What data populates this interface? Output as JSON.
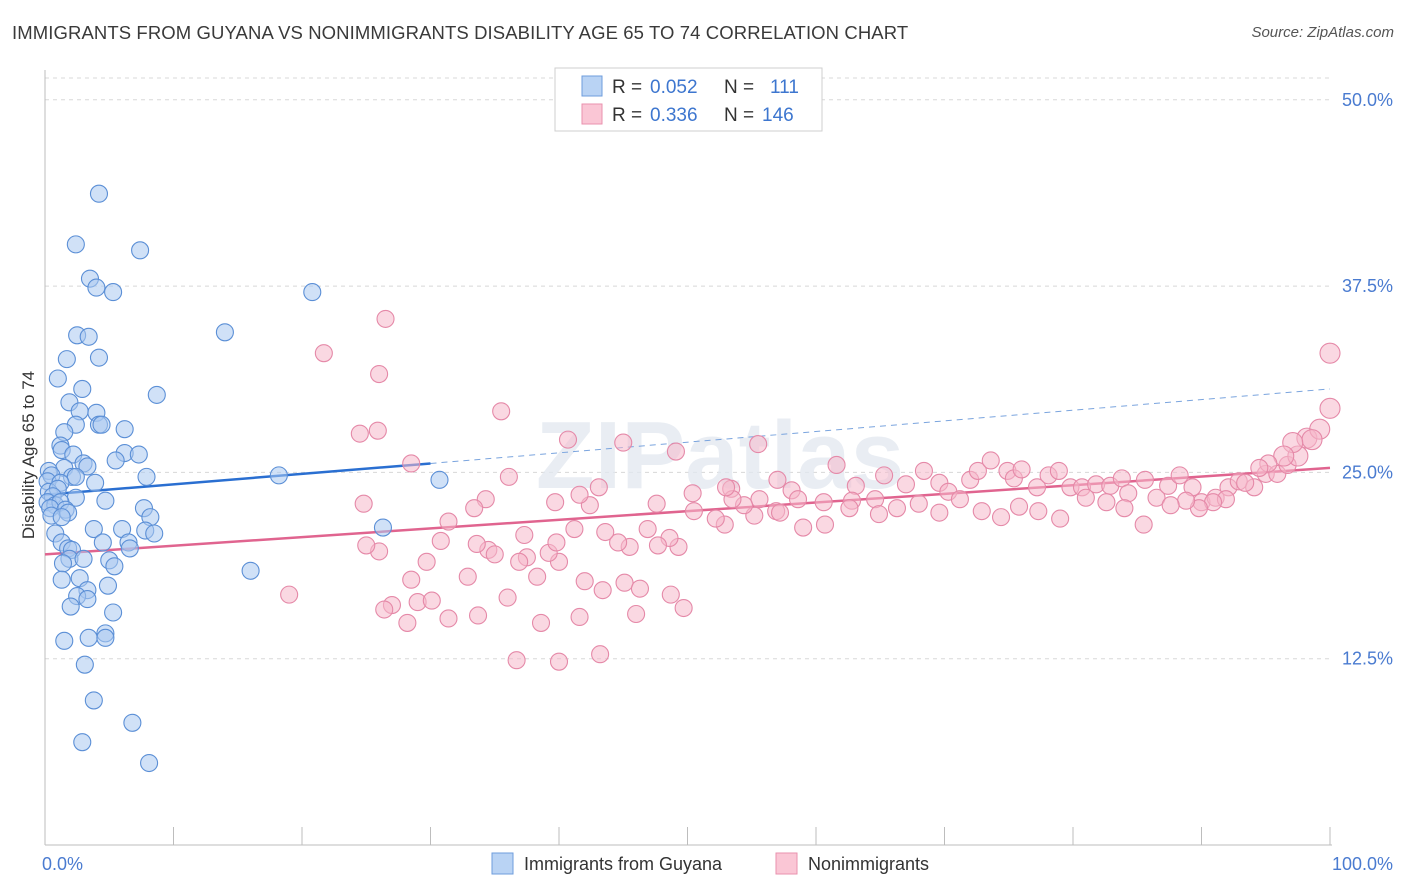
{
  "title": "IMMIGRANTS FROM GUYANA VS NONIMMIGRANTS DISABILITY AGE 65 TO 74 CORRELATION CHART",
  "source": "Source: ZipAtlas.com",
  "watermark": "ZIPatlas",
  "colors": {
    "blue_fill": "#a9c8f0",
    "blue_stroke": "#5b8fd6",
    "blue_line": "#2a6fd1",
    "pink_fill": "#f6b8cb",
    "pink_stroke": "#e589a8",
    "pink_line": "#e0648f",
    "tick_text": "#4a7bd0",
    "grid": "#d8d8d8"
  },
  "legend": {
    "row1": {
      "r_label": "R =",
      "r_value": "0.052",
      "n_label": "N =",
      "n_value": "111"
    },
    "row2": {
      "r_label": "R =",
      "r_value": "0.336",
      "n_label": "N =",
      "n_value": "146"
    }
  },
  "bottom_legend": {
    "series1": "Immigrants from Guyana",
    "series2": "Nonimmigrants"
  },
  "chart_data": {
    "type": "scatter",
    "title": "IMMIGRANTS FROM GUYANA VS NONIMMIGRANTS DISABILITY AGE 65 TO 74 CORRELATION CHART",
    "xlabel": "",
    "ylabel": "Disability Age 65 to 74",
    "xlim": [
      0,
      100
    ],
    "ylim": [
      0,
      52
    ],
    "x_tick_labels": [
      "0.0%",
      "100.0%"
    ],
    "y_ticks": [
      12.5,
      25.0,
      37.5,
      50.0
    ],
    "y_tick_labels": [
      "12.5%",
      "25.0%",
      "37.5%",
      "50.0%"
    ],
    "grid": true,
    "legend_position": "top-center",
    "series": [
      {
        "name": "Immigrants from Guyana",
        "R": 0.052,
        "N": 111,
        "trend": {
          "x": [
            0,
            30
          ],
          "y": [
            23.5,
            25.6
          ],
          "extended_to": [
            100,
            30.6
          ]
        },
        "points": [
          [
            4.2,
            43.7
          ],
          [
            2.4,
            40.3
          ],
          [
            7.4,
            39.9
          ],
          [
            3.5,
            38.0
          ],
          [
            4.0,
            37.4
          ],
          [
            5.3,
            37.1
          ],
          [
            20.8,
            37.1
          ],
          [
            2.5,
            34.2
          ],
          [
            3.4,
            34.1
          ],
          [
            14.0,
            34.4
          ],
          [
            1.7,
            32.6
          ],
          [
            4.2,
            32.7
          ],
          [
            1.0,
            31.3
          ],
          [
            2.9,
            30.6
          ],
          [
            8.7,
            30.2
          ],
          [
            1.9,
            29.7
          ],
          [
            2.7,
            29.1
          ],
          [
            4.0,
            29.0
          ],
          [
            2.4,
            28.2
          ],
          [
            4.2,
            28.2
          ],
          [
            4.4,
            28.2
          ],
          [
            6.2,
            27.9
          ],
          [
            1.5,
            27.7
          ],
          [
            1.2,
            26.8
          ],
          [
            1.3,
            26.5
          ],
          [
            2.2,
            26.2
          ],
          [
            6.2,
            26.3
          ],
          [
            7.3,
            26.2
          ],
          [
            5.5,
            25.8
          ],
          [
            3.0,
            25.6
          ],
          [
            3.3,
            25.4
          ],
          [
            1.5,
            25.3
          ],
          [
            0.3,
            25.1
          ],
          [
            0.5,
            24.8
          ],
          [
            2.1,
            24.7
          ],
          [
            2.4,
            24.7
          ],
          [
            7.9,
            24.7
          ],
          [
            18.2,
            24.8
          ],
          [
            30.7,
            24.5
          ],
          [
            0.2,
            24.4
          ],
          [
            1.2,
            24.3
          ],
          [
            3.9,
            24.3
          ],
          [
            0.3,
            23.7
          ],
          [
            1.0,
            23.9
          ],
          [
            0.6,
            23.4
          ],
          [
            2.4,
            23.3
          ],
          [
            0.2,
            23.0
          ],
          [
            0.8,
            22.8
          ],
          [
            1.2,
            23.0
          ],
          [
            4.7,
            23.1
          ],
          [
            0.4,
            22.6
          ],
          [
            1.6,
            22.5
          ],
          [
            1.8,
            22.3
          ],
          [
            7.7,
            22.6
          ],
          [
            0.5,
            22.1
          ],
          [
            1.3,
            22.0
          ],
          [
            8.2,
            22.0
          ],
          [
            3.8,
            21.2
          ],
          [
            6.0,
            21.2
          ],
          [
            26.3,
            21.3
          ],
          [
            0.8,
            20.9
          ],
          [
            7.8,
            21.1
          ],
          [
            8.5,
            20.9
          ],
          [
            1.3,
            20.3
          ],
          [
            4.5,
            20.3
          ],
          [
            1.8,
            19.9
          ],
          [
            2.1,
            19.8
          ],
          [
            6.5,
            20.3
          ],
          [
            6.6,
            19.9
          ],
          [
            1.9,
            19.2
          ],
          [
            3.0,
            19.2
          ],
          [
            1.4,
            18.9
          ],
          [
            5.0,
            19.1
          ],
          [
            5.4,
            18.7
          ],
          [
            16.0,
            18.4
          ],
          [
            2.7,
            17.9
          ],
          [
            1.3,
            17.8
          ],
          [
            3.3,
            17.1
          ],
          [
            4.9,
            17.4
          ],
          [
            2.5,
            16.7
          ],
          [
            3.3,
            16.5
          ],
          [
            2.0,
            16.0
          ],
          [
            5.3,
            15.6
          ],
          [
            4.7,
            14.2
          ],
          [
            3.4,
            13.9
          ],
          [
            4.7,
            13.9
          ],
          [
            1.5,
            13.7
          ],
          [
            3.1,
            12.1
          ],
          [
            3.8,
            9.7
          ],
          [
            6.8,
            8.2
          ],
          [
            2.9,
            6.9
          ],
          [
            8.1,
            5.5
          ]
        ]
      },
      {
        "name": "Nonimmigrants",
        "R": 0.336,
        "N": 146,
        "trend": {
          "x": [
            0,
            100
          ],
          "y": [
            19.5,
            25.3
          ]
        },
        "points": [
          [
            26.5,
            35.3
          ],
          [
            21.7,
            33.0
          ],
          [
            26.0,
            31.6
          ],
          [
            35.5,
            29.1
          ],
          [
            24.5,
            27.6
          ],
          [
            25.9,
            27.8
          ],
          [
            40.7,
            27.2
          ],
          [
            45.0,
            27.0
          ],
          [
            55.5,
            26.9
          ],
          [
            49.1,
            26.4
          ],
          [
            28.5,
            25.6
          ],
          [
            36.1,
            24.7
          ],
          [
            43.1,
            24.0
          ],
          [
            53.4,
            23.9
          ],
          [
            55.6,
            23.2
          ],
          [
            58.1,
            23.8
          ],
          [
            57.0,
            24.5
          ],
          [
            61.6,
            25.5
          ],
          [
            63.1,
            24.1
          ],
          [
            65.3,
            24.8
          ],
          [
            64.6,
            23.2
          ],
          [
            67.0,
            24.2
          ],
          [
            68.4,
            25.1
          ],
          [
            69.6,
            24.3
          ],
          [
            70.3,
            23.7
          ],
          [
            72.0,
            24.5
          ],
          [
            72.6,
            25.1
          ],
          [
            73.6,
            25.8
          ],
          [
            74.9,
            25.1
          ],
          [
            75.4,
            24.6
          ],
          [
            76.0,
            25.2
          ],
          [
            77.2,
            24.0
          ],
          [
            78.1,
            24.8
          ],
          [
            78.9,
            25.1
          ],
          [
            79.8,
            24.0
          ],
          [
            80.7,
            24.0
          ],
          [
            81.8,
            24.2
          ],
          [
            82.9,
            24.1
          ],
          [
            83.8,
            24.6
          ],
          [
            84.3,
            23.6
          ],
          [
            85.6,
            24.5
          ],
          [
            86.5,
            23.3
          ],
          [
            87.4,
            24.1
          ],
          [
            88.3,
            24.8
          ],
          [
            89.3,
            24.0
          ],
          [
            90.0,
            23.0
          ],
          [
            91.1,
            23.3
          ],
          [
            92.1,
            24.0
          ],
          [
            92.9,
            24.4
          ],
          [
            94.1,
            24.0
          ],
          [
            95.0,
            24.9
          ],
          [
            95.9,
            24.9
          ],
          [
            96.7,
            25.5
          ],
          [
            97.5,
            26.1
          ],
          [
            98.2,
            27.3
          ],
          [
            99.2,
            27.9
          ],
          [
            100.0,
            29.3
          ],
          [
            100.0,
            33.0
          ],
          [
            98.6,
            27.2
          ],
          [
            97.1,
            27.0
          ],
          [
            96.4,
            26.1
          ],
          [
            95.2,
            25.6
          ],
          [
            94.5,
            25.3
          ],
          [
            93.4,
            24.3
          ],
          [
            91.9,
            23.2
          ],
          [
            90.9,
            23.0
          ],
          [
            89.8,
            22.6
          ],
          [
            88.8,
            23.1
          ],
          [
            87.6,
            22.8
          ],
          [
            85.5,
            21.5
          ],
          [
            84.0,
            22.6
          ],
          [
            82.6,
            23.0
          ],
          [
            81.0,
            23.3
          ],
          [
            79.0,
            21.9
          ],
          [
            77.3,
            22.4
          ],
          [
            75.8,
            22.7
          ],
          [
            74.4,
            22.0
          ],
          [
            72.9,
            22.4
          ],
          [
            71.2,
            23.2
          ],
          [
            69.6,
            22.3
          ],
          [
            68.0,
            22.9
          ],
          [
            66.3,
            22.6
          ],
          [
            64.9,
            22.2
          ],
          [
            62.8,
            23.1
          ],
          [
            60.6,
            23.0
          ],
          [
            58.6,
            23.2
          ],
          [
            56.9,
            22.4
          ],
          [
            55.2,
            22.1
          ],
          [
            54.4,
            22.8
          ],
          [
            53.5,
            23.2
          ],
          [
            52.9,
            21.5
          ],
          [
            52.2,
            21.9
          ],
          [
            50.5,
            22.4
          ],
          [
            49.3,
            20.0
          ],
          [
            48.6,
            20.6
          ],
          [
            47.7,
            20.1
          ],
          [
            46.9,
            21.2
          ],
          [
            45.5,
            20.0
          ],
          [
            44.6,
            20.3
          ],
          [
            43.6,
            21.0
          ],
          [
            42.4,
            22.8
          ],
          [
            41.2,
            21.2
          ],
          [
            40.0,
            19.0
          ],
          [
            39.2,
            19.6
          ],
          [
            38.3,
            18.0
          ],
          [
            37.5,
            19.3
          ],
          [
            36.9,
            19.0
          ],
          [
            34.5,
            19.8
          ],
          [
            32.9,
            18.0
          ],
          [
            30.8,
            20.4
          ],
          [
            28.5,
            17.8
          ],
          [
            29.0,
            16.3
          ],
          [
            27.0,
            16.1
          ],
          [
            26.4,
            15.8
          ],
          [
            26.0,
            19.7
          ],
          [
            31.4,
            21.7
          ],
          [
            33.6,
            20.2
          ],
          [
            35.0,
            19.5
          ],
          [
            37.3,
            20.8
          ],
          [
            39.8,
            20.3
          ],
          [
            42.0,
            17.7
          ],
          [
            43.4,
            17.1
          ],
          [
            45.1,
            17.6
          ],
          [
            46.3,
            17.2
          ],
          [
            48.7,
            16.8
          ],
          [
            49.7,
            15.9
          ],
          [
            41.6,
            15.3
          ],
          [
            46.0,
            15.5
          ],
          [
            38.6,
            14.9
          ],
          [
            36.0,
            16.6
          ],
          [
            33.7,
            15.4
          ],
          [
            31.4,
            15.2
          ],
          [
            29.7,
            19.0
          ],
          [
            28.2,
            14.9
          ],
          [
            25.0,
            20.1
          ],
          [
            24.8,
            22.9
          ],
          [
            34.3,
            23.2
          ],
          [
            39.7,
            23.0
          ],
          [
            41.6,
            23.5
          ],
          [
            47.6,
            22.9
          ],
          [
            50.4,
            23.6
          ],
          [
            53.0,
            24.0
          ],
          [
            57.2,
            22.3
          ],
          [
            59.0,
            21.3
          ],
          [
            60.7,
            21.5
          ],
          [
            62.6,
            22.6
          ],
          [
            36.7,
            12.4
          ],
          [
            40.0,
            12.3
          ],
          [
            43.2,
            12.8
          ],
          [
            19.0,
            16.8
          ],
          [
            30.1,
            16.4
          ],
          [
            33.4,
            22.6
          ]
        ]
      }
    ]
  }
}
